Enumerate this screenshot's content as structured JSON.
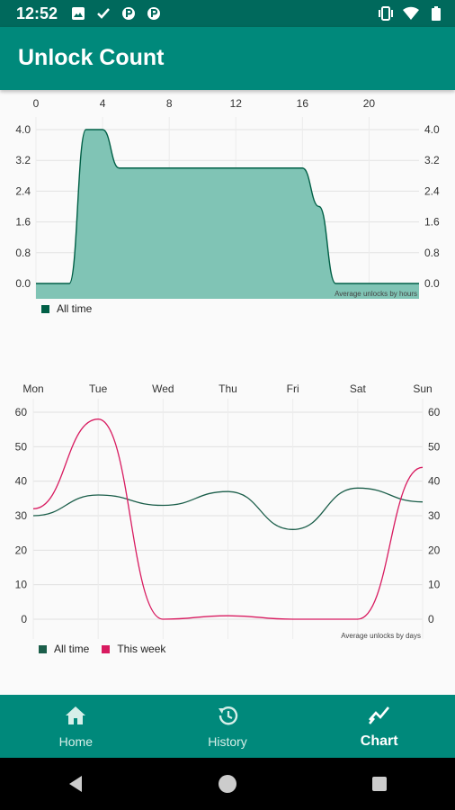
{
  "status": {
    "time": "12:52"
  },
  "app": {
    "title": "Unlock Count"
  },
  "hour_chart": {
    "description": "Average unlocks by hours",
    "legend": [
      {
        "name": "All time",
        "color": "#005f46"
      }
    ],
    "fill_color": "#80c4b5",
    "stroke_color": "#005f46",
    "chart_data": {
      "type": "area",
      "x_ticks": [
        "0",
        "4",
        "8",
        "12",
        "16",
        "20"
      ],
      "y_ticks": [
        "0.0",
        "0.8",
        "1.6",
        "2.4",
        "3.2",
        "4.0"
      ],
      "xlim": [
        0,
        23
      ],
      "ylim": [
        0,
        4
      ],
      "x": [
        0,
        1,
        2,
        3,
        4,
        5,
        6,
        7,
        8,
        9,
        10,
        11,
        12,
        13,
        14,
        15,
        16,
        17,
        18,
        19,
        20,
        21,
        22,
        23
      ],
      "values": [
        0,
        0,
        0,
        4,
        4,
        3,
        3,
        3,
        3,
        3,
        3,
        3,
        3,
        3,
        3,
        3,
        3,
        2,
        0,
        0,
        0,
        0,
        0,
        0
      ]
    }
  },
  "day_chart": {
    "description": "Average unlocks by days",
    "legend": [
      {
        "name": "All time",
        "color": "#1b5e4a"
      },
      {
        "name": "This week",
        "color": "#d81b60"
      }
    ],
    "chart_data": {
      "type": "line",
      "categories": [
        "Mon",
        "Tue",
        "Wed",
        "Thu",
        "Fri",
        "Sat",
        "Sun"
      ],
      "y_ticks": [
        "0",
        "10",
        "20",
        "30",
        "40",
        "50",
        "60"
      ],
      "ylim": [
        0,
        60
      ],
      "series": [
        {
          "name": "All time",
          "values": [
            30,
            36,
            33,
            37,
            26,
            38,
            34
          ]
        },
        {
          "name": "This week",
          "values": [
            32,
            58,
            0,
            1,
            0,
            0,
            44
          ]
        }
      ]
    }
  },
  "nav": {
    "items": [
      {
        "label": "Home",
        "icon": "home-icon"
      },
      {
        "label": "History",
        "icon": "history-icon"
      },
      {
        "label": "Chart",
        "icon": "chart-icon"
      }
    ]
  }
}
